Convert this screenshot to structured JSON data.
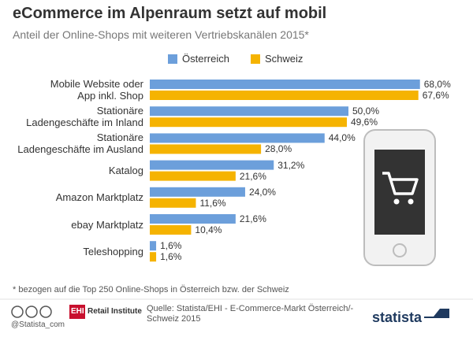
{
  "chart_data": {
    "type": "bar",
    "orientation": "horizontal",
    "title": "eCommerce im Alpenraum setzt auf mobil",
    "subtitle": "Anteil der Online-Shops mit weiteren Vertriebskanälen 2015*",
    "categories": [
      "Mobile Website oder\nApp inkl. Shop",
      "Stationäre\nLadengeschäfte im Inland",
      "Stationäre\nLadengeschäfte im Ausland",
      "Katalog",
      "Amazon Marktplatz",
      "ebay Marktplatz",
      "Teleshopping"
    ],
    "series": [
      {
        "name": "Österreich",
        "color": "#6c9fdb",
        "values": [
          68.0,
          50.0,
          44.0,
          31.2,
          24.0,
          21.6,
          1.6
        ],
        "value_labels": [
          "68,0%",
          "50,0%",
          "44,0%",
          "31,2%",
          "24,0%",
          "21,6%",
          "1,6%"
        ]
      },
      {
        "name": "Schweiz",
        "color": "#f5b301",
        "values": [
          67.6,
          49.6,
          28.0,
          21.6,
          11.6,
          10.4,
          1.6
        ],
        "value_labels": [
          "67,6%",
          "49,6%",
          "28,0%",
          "21,6%",
          "11,6%",
          "10,4%",
          "1,6%"
        ]
      }
    ],
    "legend": "top",
    "note": "* bezogen auf die Top 250 Online-Shops in Österreich bzw. der Schweiz"
  },
  "footer": {
    "handle": "@Statista_com",
    "logo": "EHI",
    "logo_text": "Retail Institute",
    "source": "Quelle: Statista/EHI - E-Commerce-Markt Österreich/-\nSchweiz 2015",
    "brand": "statista"
  }
}
